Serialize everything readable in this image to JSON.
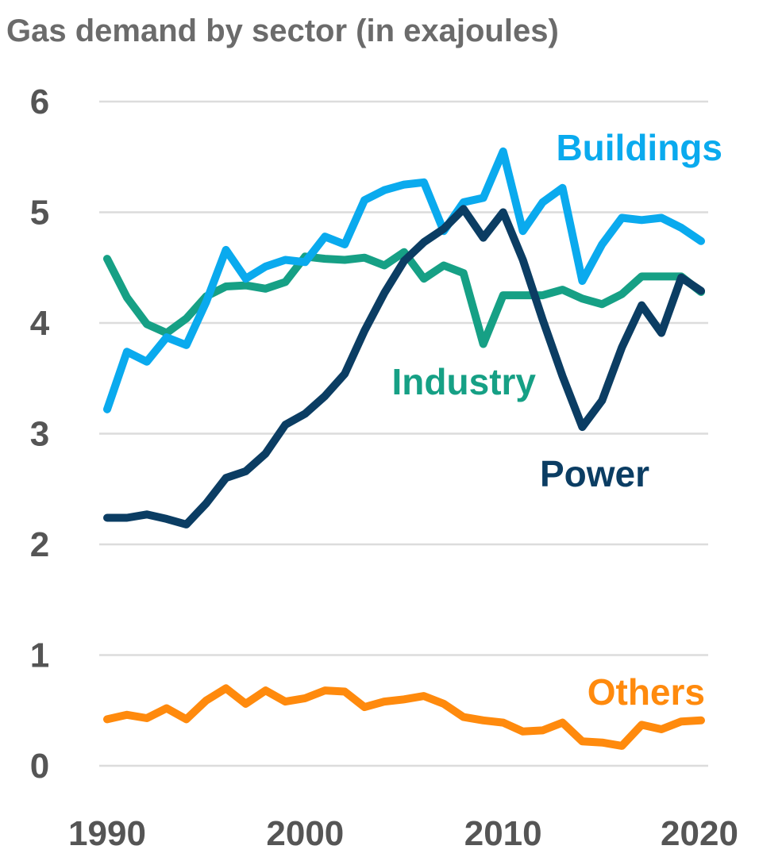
{
  "chart_data": {
    "type": "line",
    "title": "Gas demand by sector (in exajoules)",
    "xlabel": "",
    "ylabel": "",
    "x": [
      1990,
      1991,
      1992,
      1993,
      1994,
      1995,
      1996,
      1997,
      1998,
      1999,
      2000,
      2001,
      2002,
      2003,
      2004,
      2005,
      2006,
      2007,
      2008,
      2009,
      2010,
      2011,
      2012,
      2013,
      2014,
      2015,
      2016,
      2017,
      2018,
      2019,
      2020
    ],
    "xlim": [
      1990,
      2020
    ],
    "ylim": [
      0,
      6
    ],
    "x_ticks": [
      "1990",
      "2000",
      "2010",
      "2020"
    ],
    "y_ticks": [
      "0",
      "1",
      "2",
      "3",
      "4",
      "5",
      "6"
    ],
    "grid": true,
    "legend": "inline labels",
    "series": [
      {
        "name": "Buildings",
        "color": "#0aaaee",
        "values": [
          3.22,
          3.74,
          3.65,
          3.87,
          3.8,
          4.19,
          4.66,
          4.4,
          4.51,
          4.57,
          4.55,
          4.78,
          4.71,
          5.11,
          5.2,
          5.25,
          5.27,
          4.83,
          5.09,
          5.13,
          5.55,
          4.83,
          5.09,
          5.22,
          4.38,
          4.71,
          4.95,
          4.93,
          4.95,
          4.86,
          4.74
        ]
      },
      {
        "name": "Industry",
        "color": "#16a085",
        "values": [
          4.58,
          4.23,
          3.99,
          3.91,
          4.04,
          4.24,
          4.33,
          4.34,
          4.31,
          4.37,
          4.6,
          4.58,
          4.57,
          4.59,
          4.52,
          4.64,
          4.4,
          4.52,
          4.45,
          3.81,
          4.25,
          4.25,
          4.25,
          4.3,
          4.22,
          4.17,
          4.26,
          4.42,
          4.42,
          4.42,
          4.28
        ]
      },
      {
        "name": "Power",
        "color": "#0b3d63",
        "values": [
          2.24,
          2.24,
          2.27,
          2.23,
          2.18,
          2.37,
          2.6,
          2.66,
          2.82,
          3.08,
          3.18,
          3.34,
          3.54,
          3.93,
          4.27,
          4.56,
          4.73,
          4.85,
          5.03,
          4.77,
          5.0,
          4.57,
          4.03,
          3.52,
          3.06,
          3.3,
          3.78,
          4.16,
          3.91,
          4.41,
          4.29
        ]
      },
      {
        "name": "Others",
        "color": "#ff8a0d",
        "values": [
          0.42,
          0.46,
          0.43,
          0.52,
          0.42,
          0.59,
          0.7,
          0.56,
          0.68,
          0.58,
          0.61,
          0.68,
          0.67,
          0.53,
          0.58,
          0.6,
          0.63,
          0.56,
          0.44,
          0.41,
          0.39,
          0.31,
          0.32,
          0.39,
          0.22,
          0.21,
          0.18,
          0.37,
          0.33,
          0.4,
          0.41
        ]
      }
    ]
  }
}
